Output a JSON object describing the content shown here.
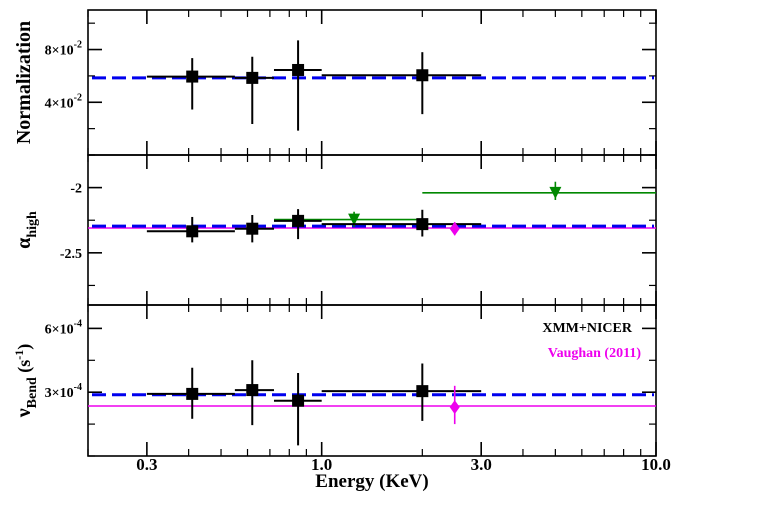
{
  "chart_data": {
    "type": "scatter",
    "xlabel": "Energy (KeV)",
    "xscale": "log",
    "xlim": [
      0.2,
      10.0
    ],
    "xticks": [
      {
        "value": 0.3,
        "label": "0.3"
      },
      {
        "value": 1.0,
        "label": "1.0"
      },
      {
        "value": 3.0,
        "label": "3.0"
      },
      {
        "value": 10.0,
        "label": "10.0"
      }
    ],
    "colors": {
      "xmm": "#000000",
      "fit": "#0000ee",
      "green": "#008800",
      "vaughan": "#ee00ee"
    },
    "legend": [
      {
        "label": "XMM+NICER",
        "color": "#000000"
      },
      {
        "label": "Vaughan (2011)",
        "color": "#ee00ee"
      }
    ],
    "panels": [
      {
        "id": "normalization",
        "ylabel": "Normalization",
        "ylim": [
          0.0,
          0.11
        ],
        "yticks": [
          {
            "value": 0.04,
            "mant": "4×10",
            "exp": "-2"
          },
          {
            "value": 0.08,
            "mant": "8×10",
            "exp": "-2"
          }
        ],
        "fit_level": 0.0585,
        "reference_level": null,
        "xmm": [
          {
            "x": 0.41,
            "xlo": 0.3,
            "xhi": 0.55,
            "y": 0.0595,
            "ylo": 0.0345,
            "yhi": 0.0735
          },
          {
            "x": 0.62,
            "xlo": 0.55,
            "xhi": 0.72,
            "y": 0.0585,
            "ylo": 0.0235,
            "yhi": 0.0745
          },
          {
            "x": 0.85,
            "xlo": 0.72,
            "xhi": 1.0,
            "y": 0.0645,
            "ylo": 0.0185,
            "yhi": 0.087
          },
          {
            "x": 2.0,
            "xlo": 1.0,
            "xhi": 3.0,
            "y": 0.0605,
            "ylo": 0.031,
            "yhi": 0.078
          }
        ],
        "green": [],
        "vaughan": []
      },
      {
        "id": "alpha",
        "ylabel": "α",
        "ylabel_sub": "high",
        "ylim": [
          -2.9,
          -1.75
        ],
        "yticks": [
          {
            "value": -2.0,
            "label": "-2"
          },
          {
            "value": -2.5,
            "label": "-2.5"
          }
        ],
        "fit_level": -2.295,
        "reference_level": -2.31,
        "xmm": [
          {
            "x": 0.41,
            "xlo": 0.3,
            "xhi": 0.55,
            "y": -2.335,
            "ylo": -2.42,
            "yhi": -2.225
          },
          {
            "x": 0.62,
            "xlo": 0.55,
            "xhi": 0.72,
            "y": -2.315,
            "ylo": -2.42,
            "yhi": -2.21
          },
          {
            "x": 0.85,
            "xlo": 0.72,
            "xhi": 1.0,
            "y": -2.255,
            "ylo": -2.395,
            "yhi": -2.165
          },
          {
            "x": 2.0,
            "xlo": 1.0,
            "xhi": 3.0,
            "y": -2.28,
            "ylo": -2.375,
            "yhi": -2.17
          }
        ],
        "green": [
          {
            "x": 1.25,
            "xlo": 0.72,
            "xhi": 2.0,
            "y": -2.245,
            "ylo": -2.3,
            "yhi": -2.185
          },
          {
            "x": 5.0,
            "xlo": 2.0,
            "xhi": 10.0,
            "y": -2.04,
            "ylo": -2.095,
            "yhi": -1.955
          }
        ],
        "vaughan": [
          {
            "x": 2.5,
            "y": -2.315,
            "ylo": -2.365,
            "yhi": -2.265
          }
        ]
      },
      {
        "id": "nu_bend",
        "ylabel": "ν",
        "ylabel_sub": "Bend",
        "ylabel_unit": "(s",
        "ylabel_unit_sup": "-1",
        "ylabel_unit_close": ")",
        "ylim": [
          0.0,
          0.00071
        ],
        "yticks": [
          {
            "value": 0.0003,
            "mant": "3×10",
            "exp": "-4"
          },
          {
            "value": 0.0006,
            "mant": "6×10",
            "exp": "-4"
          }
        ],
        "fit_level": 0.000288,
        "reference_level": 0.000235,
        "xmm": [
          {
            "x": 0.41,
            "xlo": 0.3,
            "xhi": 0.55,
            "y": 0.000292,
            "ylo": 0.000175,
            "yhi": 0.000415
          },
          {
            "x": 0.62,
            "xlo": 0.55,
            "xhi": 0.72,
            "y": 0.00031,
            "ylo": 0.000145,
            "yhi": 0.00045
          },
          {
            "x": 0.85,
            "xlo": 0.72,
            "xhi": 1.0,
            "y": 0.00026,
            "ylo": 5e-05,
            "yhi": 0.00039
          },
          {
            "x": 2.0,
            "xlo": 1.0,
            "xhi": 3.0,
            "y": 0.000305,
            "ylo": 0.000165,
            "yhi": 0.000435
          }
        ],
        "green": [],
        "vaughan": [
          {
            "x": 2.5,
            "y": 0.00023,
            "ylo": 0.00015,
            "yhi": 0.00033
          }
        ]
      }
    ]
  }
}
